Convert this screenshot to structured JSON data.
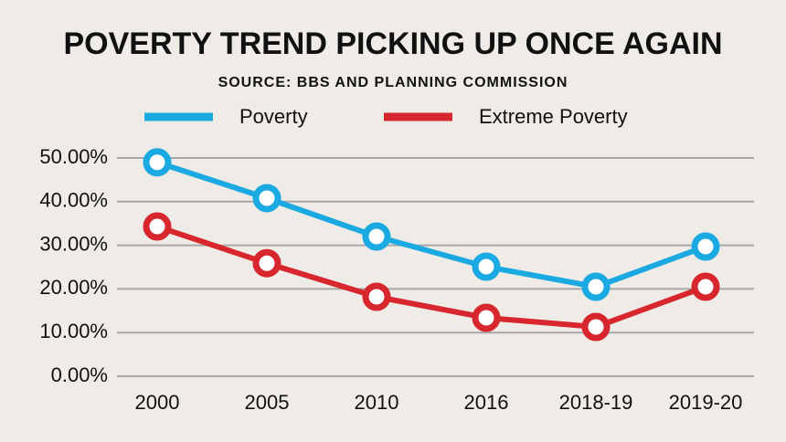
{
  "chart_data": {
    "type": "line",
    "title": "POVERTY TREND PICKING UP ONCE AGAIN",
    "subtitle": "SOURCE: BBS AND PLANNING COMMISSION",
    "categories": [
      "2000",
      "2005",
      "2010",
      "2016",
      "2018-19",
      "2019-20"
    ],
    "series": [
      {
        "name": "Poverty",
        "color": "#1ba9e1",
        "values": [
          49.0,
          40.8,
          32.0,
          25.1,
          20.5,
          29.7
        ]
      },
      {
        "name": "Extreme Poverty",
        "color": "#d7262e",
        "values": [
          34.3,
          25.9,
          18.2,
          13.4,
          11.3,
          20.5
        ]
      }
    ],
    "ylim": [
      0,
      50
    ],
    "yticks": [
      {
        "value": 0,
        "label": "0.00%"
      },
      {
        "value": 10,
        "label": "10.00%"
      },
      {
        "value": 20,
        "label": "20.00%"
      },
      {
        "value": 30,
        "label": "30.00%"
      },
      {
        "value": 40,
        "label": "40.00%"
      },
      {
        "value": 50,
        "label": "50.00%"
      }
    ],
    "grid": true
  }
}
